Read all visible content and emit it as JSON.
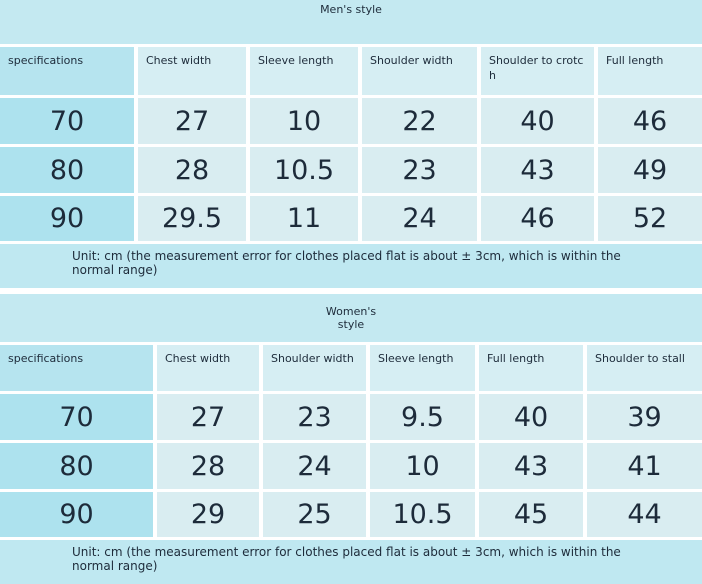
{
  "men": {
    "title": "Men's style",
    "headers": [
      "specifications",
      "Chest width",
      "Sleeve length",
      "Shoulder width",
      "Shoulder to crotch",
      "Full length"
    ],
    "rows": [
      [
        70,
        27,
        10,
        22,
        40,
        46
      ],
      [
        80,
        28,
        10.5,
        23,
        43,
        49
      ],
      [
        90,
        29.5,
        11,
        24,
        46,
        52
      ]
    ],
    "note": "Unit: cm (the measurement error for clothes placed flat is about ± 3cm, which is within the normal range)"
  },
  "women": {
    "title": "Women's style",
    "headers": [
      "specifications",
      "Chest width",
      "Shoulder width",
      "Sleeve length",
      "Full length",
      "Shoulder to stall"
    ],
    "rows": [
      [
        70,
        27,
        23,
        9.5,
        40,
        39
      ],
      [
        80,
        28,
        24,
        10,
        43,
        41
      ],
      [
        90,
        29,
        25,
        10.5,
        45,
        44
      ]
    ],
    "note": "Unit: cm (the measurement error for clothes placed flat is about ± 3cm, which is within the normal range)"
  }
}
